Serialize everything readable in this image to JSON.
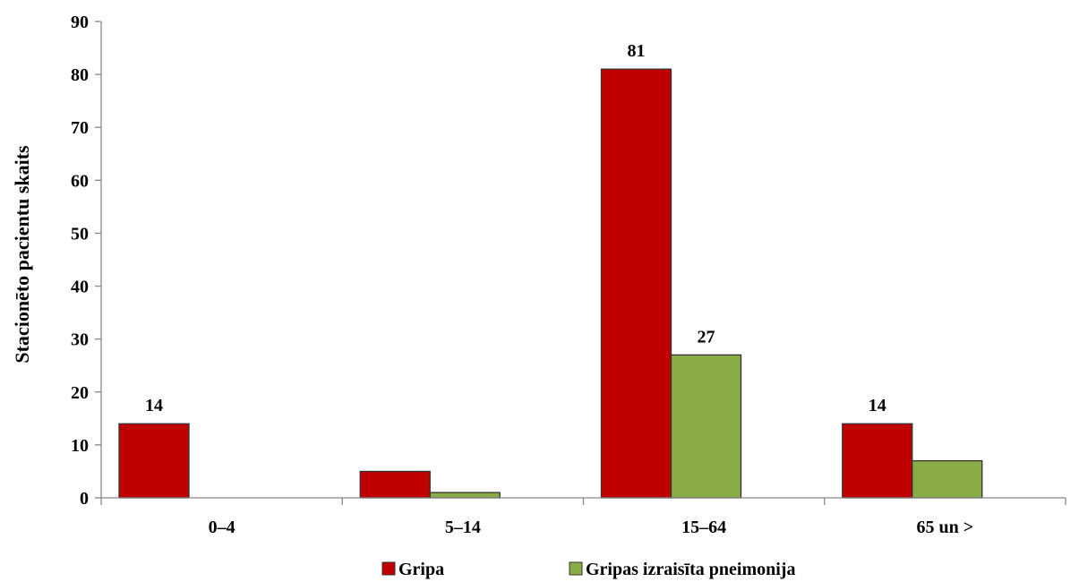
{
  "chart_data": {
    "type": "bar",
    "title": "",
    "xlabel": "",
    "ylabel": "Stacionēto pacientu skaits",
    "categories": [
      "0–4",
      "5–14",
      "15–64",
      "65 un >"
    ],
    "series": [
      {
        "name": "Gripa",
        "values": [
          14,
          5,
          81,
          14
        ],
        "color": "#c00000",
        "labels": [
          "14",
          "",
          "81",
          "14"
        ]
      },
      {
        "name": "Gripas izraisīta pneimonija",
        "values": [
          0,
          1,
          27,
          7
        ],
        "color": "#8aac46",
        "labels": [
          "",
          "",
          "27",
          ""
        ]
      }
    ],
    "ylim": [
      0,
      90
    ],
    "yticks": [
      0,
      10,
      20,
      30,
      40,
      50,
      60,
      70,
      80,
      90
    ],
    "grid": false,
    "legend_position": "bottom"
  }
}
